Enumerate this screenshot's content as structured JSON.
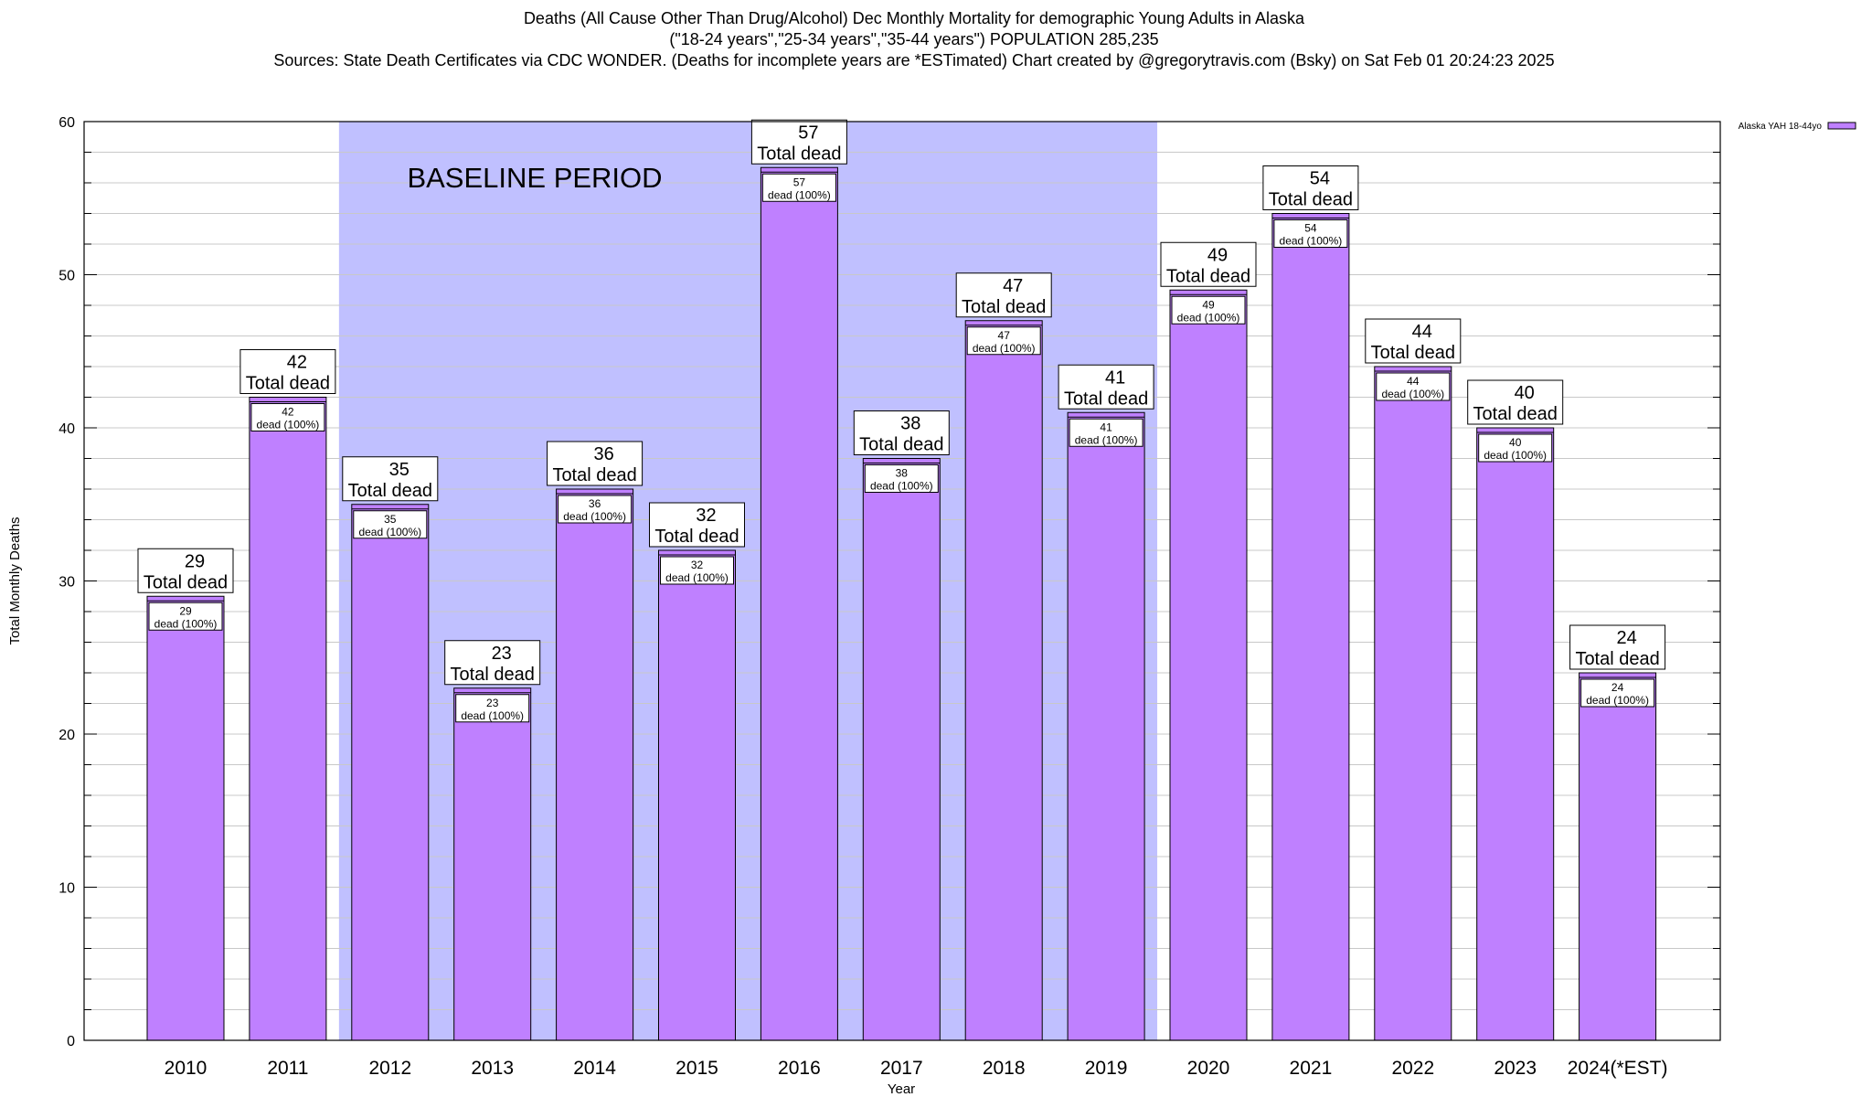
{
  "chart_data": {
    "type": "bar",
    "title_lines": [
      "Deaths (All Cause Other Than Drug/Alcohol) Dec Monthly Mortality for demographic Young Adults in Alaska",
      "(\"18-24 years\",\"25-34 years\",\"35-44 years\") POPULATION 285,235",
      "Sources: State Death Certificates via CDC WONDER. (Deaths for incomplete years are *ESTimated)              Chart created by @gregorytravis.com (Bsky) on Sat Feb 01 20:24:23 2025"
    ],
    "xlabel": "Year",
    "ylabel": "Total Monthly Deaths",
    "ylim": [
      0,
      60
    ],
    "yticks": [
      0,
      10,
      20,
      30,
      40,
      50,
      60
    ],
    "grid": true,
    "legend_position": "top-right",
    "categories": [
      "2010",
      "2011",
      "2012",
      "2013",
      "2014",
      "2015",
      "2016",
      "2017",
      "2018",
      "2019",
      "2020",
      "2021",
      "2022",
      "2023",
      "2024(*EST)"
    ],
    "series": [
      {
        "name": "Alaska YAH 18-44yo",
        "color": "#bf80ff",
        "values": [
          29,
          42,
          35,
          23,
          36,
          32,
          57,
          38,
          47,
          41,
          49,
          54,
          44,
          40,
          24
        ]
      }
    ],
    "top_label_suffix": "Total dead",
    "inner_label_suffix": "dead (100%)",
    "annotation": {
      "text": "BASELINE PERIOD",
      "from": "2012",
      "to": "2019",
      "color": "#c0c0ff"
    }
  }
}
